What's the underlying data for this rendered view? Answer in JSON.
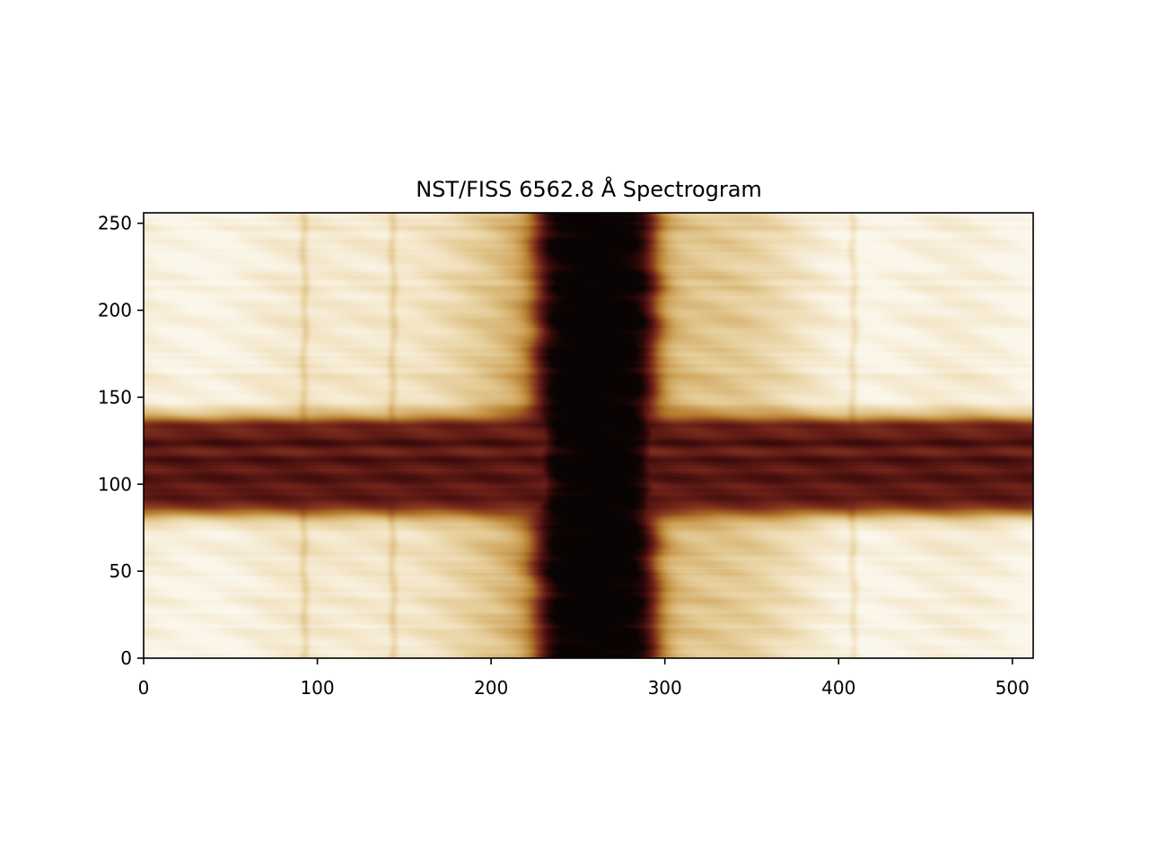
{
  "chart_data": {
    "type": "heatmap",
    "title": "NST/FISS 6562.8 Å Spectrogram",
    "xlabel": "",
    "ylabel": "",
    "xlim": [
      0,
      512
    ],
    "ylim": [
      0,
      256
    ],
    "xticks": [
      0,
      100,
      200,
      300,
      400,
      500
    ],
    "yticks": [
      0,
      50,
      100,
      150,
      200,
      250
    ],
    "grid": false,
    "legend": "none",
    "colormap": [
      "#0a0303",
      "#3d0c0c",
      "#6a1f18",
      "#8f4420",
      "#b27a2c",
      "#cfa45c",
      "#e3c992",
      "#f2e2c0",
      "#fbf6ea"
    ],
    "features": {
      "absorption_line_center_x": 260,
      "absorption_line_half_width": 34,
      "dark_band_y_range": [
        82,
        138
      ],
      "weak_lines_x": [
        92,
        143,
        408
      ]
    }
  }
}
